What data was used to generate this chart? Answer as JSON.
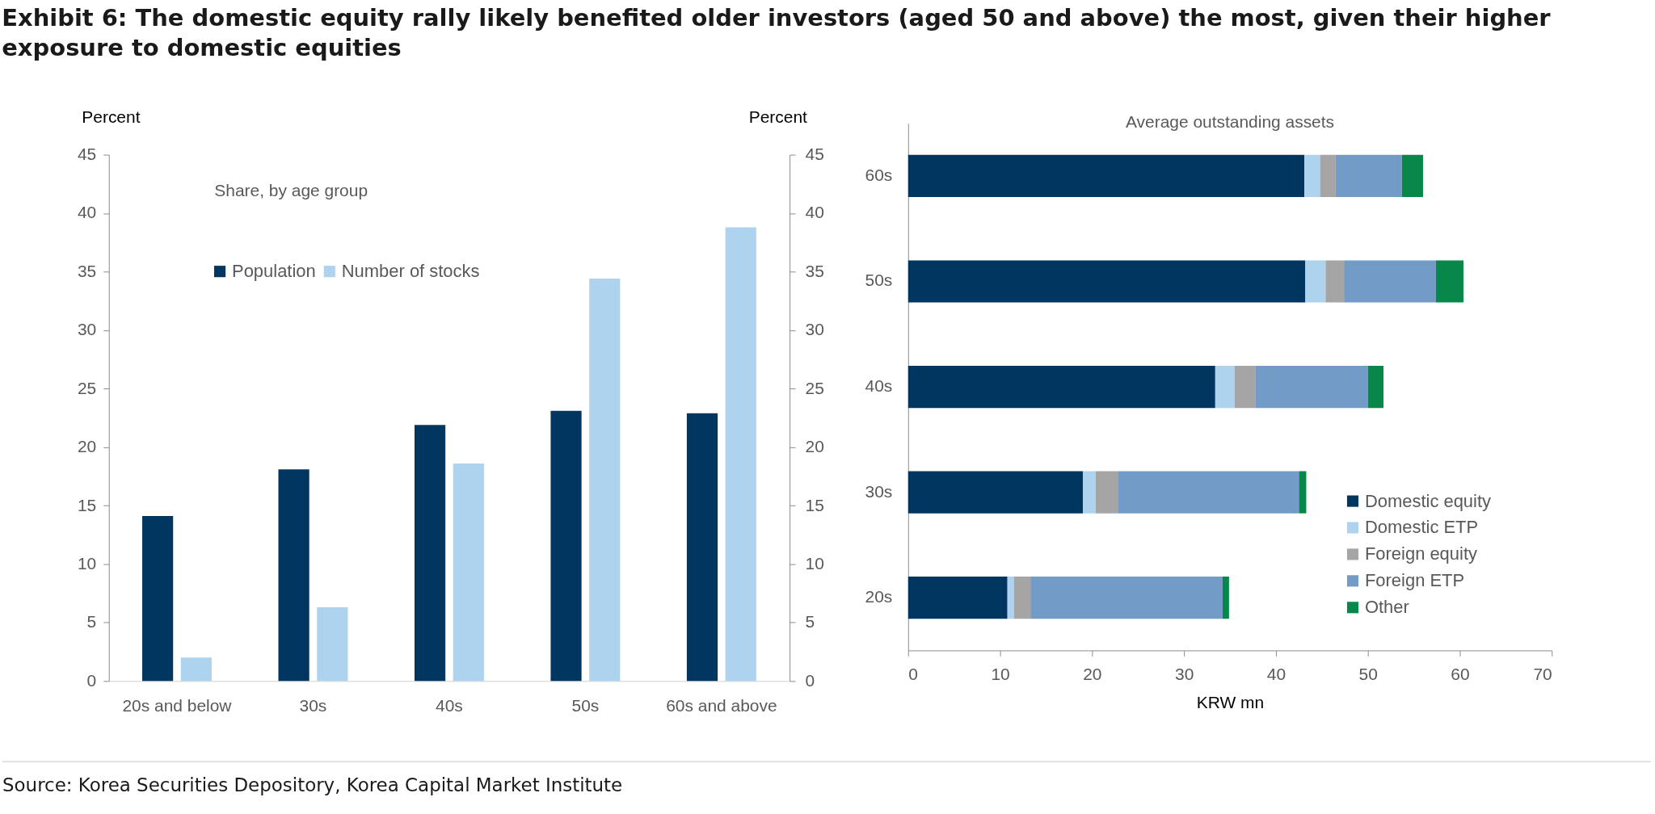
{
  "chart_data": [
    {
      "type": "bar",
      "title": "Exhibit 6: The domestic equity rally likely benefited older investors (aged 50 and above) the most, given their higher exposure to domestic equities",
      "ylabel": "Percent",
      "y2label": "Percent",
      "annotations": [
        "Share, by age group"
      ],
      "categories": [
        "20s and below",
        "30s",
        "40s",
        "50s",
        "60s and above"
      ],
      "series": [
        {
          "name": "Population",
          "color": "#003660",
          "values": [
            14.1,
            18.1,
            21.9,
            23.1,
            22.9
          ]
        },
        {
          "name": "Number of stocks",
          "color": "#aed3ef",
          "values": [
            2.0,
            6.3,
            18.6,
            34.4,
            38.8
          ]
        }
      ],
      "ylim": [
        0,
        45
      ],
      "yticks": [
        0,
        5,
        10,
        15,
        20,
        25,
        30,
        35,
        40,
        45
      ],
      "y2lim": [
        0,
        45
      ],
      "y2ticks": [
        0,
        5,
        10,
        15,
        20,
        25,
        30,
        35,
        40,
        45
      ],
      "legend": "top left"
    },
    {
      "type": "bar",
      "orientation": "horizontal",
      "stacked": true,
      "title": "Average outstanding assets",
      "xlabel": "KRW mn",
      "annotations": [
        "Source: Korea Securities Depository, Korea Capital Market Institute"
      ],
      "categories": [
        "60s",
        "50s",
        "40s",
        "30s",
        "20s"
      ],
      "series": [
        {
          "name": "Domestic equity",
          "color": "#003660",
          "values": [
            43.1,
            43.2,
            33.4,
            19.0,
            10.8
          ]
        },
        {
          "name": "Domestic ETP",
          "color": "#aed3ef",
          "values": [
            1.7,
            2.2,
            2.1,
            1.4,
            0.7
          ]
        },
        {
          "name": "Foreign equity",
          "color": "#a5a5a5",
          "values": [
            1.7,
            2.0,
            2.3,
            2.4,
            1.8
          ]
        },
        {
          "name": "Foreign ETP",
          "color": "#739bc7",
          "values": [
            7.2,
            10.0,
            12.2,
            19.7,
            20.9
          ]
        },
        {
          "name": "Other",
          "color": "#07884a",
          "values": [
            2.3,
            3.0,
            1.7,
            0.8,
            0.7
          ]
        }
      ],
      "xlim": [
        0,
        70
      ],
      "xticks": [
        0,
        10,
        20,
        30,
        40,
        50,
        60,
        70
      ],
      "legend": "bottom right"
    }
  ]
}
